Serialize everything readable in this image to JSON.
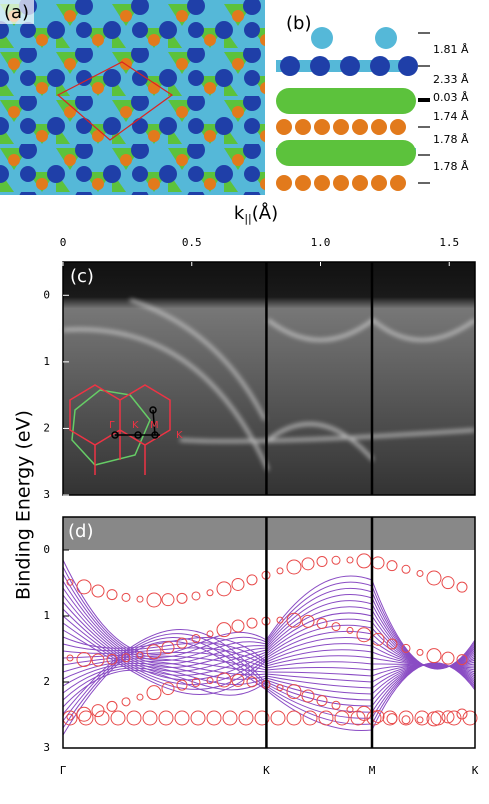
{
  "panel_a": {
    "label": "(a)"
  },
  "panel_b": {
    "label": "(b)",
    "spacings": [
      "1.81 Å",
      "2.33 Å",
      "0.03 Å",
      "1.74 Å",
      "1.78 Å",
      "1.78 Å"
    ]
  },
  "k_axis": {
    "title": "k",
    "title_subscript": "||",
    "title_unit": "(Å)",
    "xlim": [
      0,
      1.6
    ],
    "xticks": [
      0,
      0.5,
      {
        "value": 1,
        "label": "1.0"
      },
      1.5
    ]
  },
  "energy_axis": {
    "title": "Binding Energy (eV)",
    "ylim": [
      -0.5,
      3
    ],
    "yticks": [
      0,
      1,
      2,
      3
    ]
  },
  "panel_c": {
    "label": "(c)",
    "inset_labels": [
      "Γ",
      "K",
      "M",
      "K"
    ]
  },
  "panel_d": {
    "label": "(d)"
  },
  "high_symmetry": [
    {
      "label": "Γ",
      "k": 0
    },
    {
      "label": "K",
      "k": 0.79
    },
    {
      "label": "M",
      "k": 1.2
    },
    {
      "label": "K",
      "k": 1.6
    }
  ]
}
